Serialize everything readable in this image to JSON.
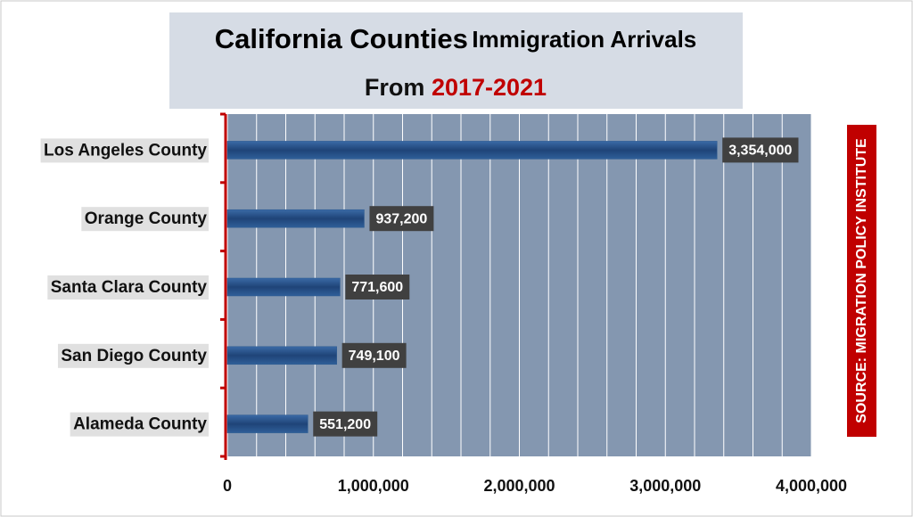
{
  "chart_data": {
    "type": "bar",
    "orientation": "horizontal",
    "title": {
      "main": "California Counties",
      "rest": "Immigration Arrivals",
      "prefix": "From",
      "period": "2017-2021"
    },
    "source": "SOURCE: MIGRATION POLICY INSTITUTE",
    "categories": [
      "Los Angeles County",
      "Orange County",
      "Santa Clara County",
      "San Diego County",
      "Alameda County"
    ],
    "values": [
      3354000,
      937200,
      771600,
      749100,
      551200
    ],
    "value_labels": [
      "3,354,000",
      "937,200",
      "771,600",
      "749,100",
      "551,200"
    ],
    "color": "#2c5a90",
    "xlim": [
      0,
      4000000
    ],
    "xticks": [
      0,
      {
        "value": 1000000,
        "label": "1,000,000"
      },
      {
        "value": 2000000,
        "label": "2,000,000"
      },
      {
        "value": 3000000,
        "label": "3,000,000"
      },
      {
        "value": 4000000,
        "label": "4,000,000"
      }
    ],
    "minor_xticks": [
      200000,
      400000,
      600000,
      800000,
      1200000,
      1400000,
      1600000,
      1800000,
      2200000,
      2400000,
      2600000,
      2800000,
      3200000,
      3400000,
      3600000,
      3800000
    ],
    "grid": true
  }
}
